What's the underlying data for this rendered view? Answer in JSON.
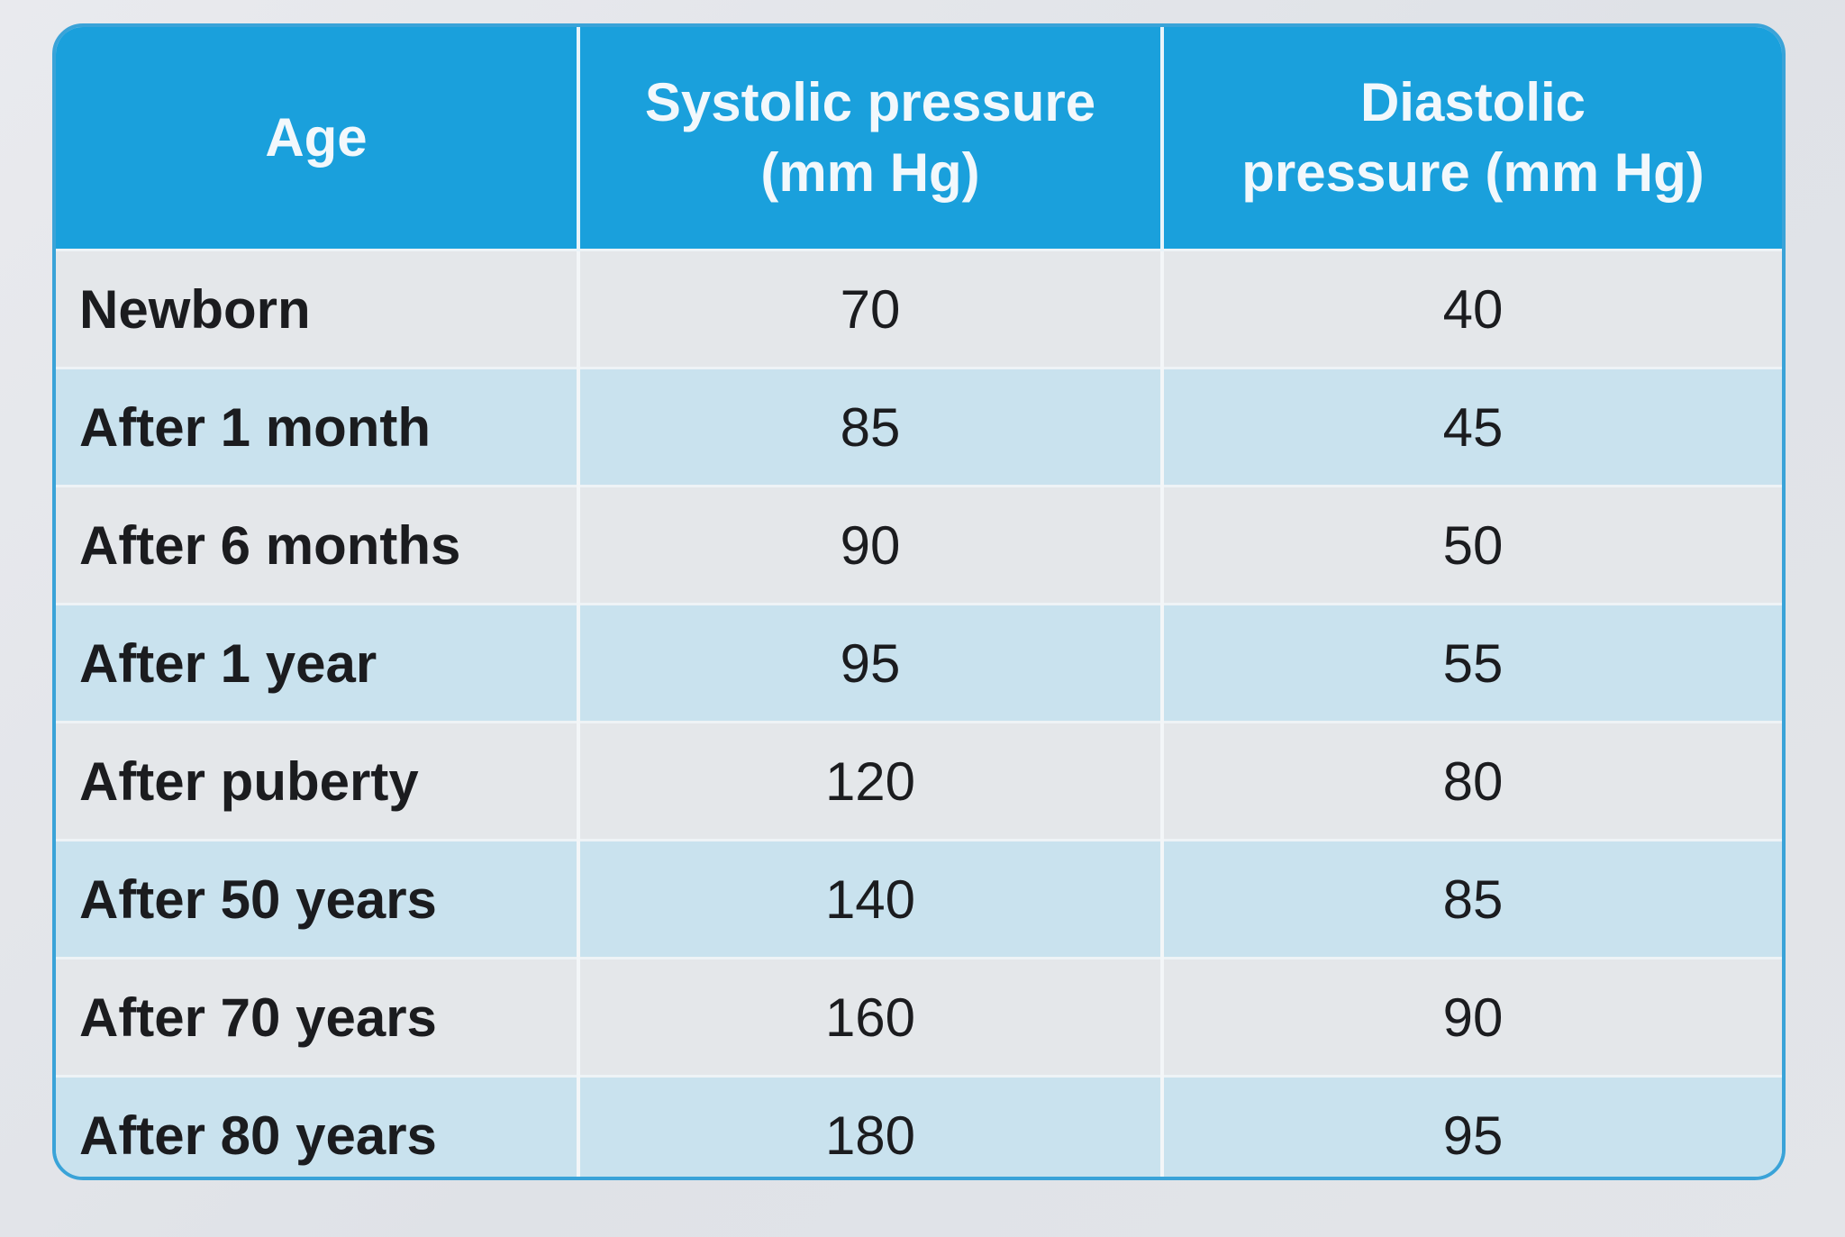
{
  "table": {
    "headers": {
      "age": "Age",
      "systolic_line1": "Systolic pressure",
      "systolic_line2": "(mm Hg)",
      "diastolic_line1": "Diastolic",
      "diastolic_line2": "pressure (mm Hg)"
    },
    "rows": [
      {
        "age": "Newborn",
        "systolic": "70",
        "diastolic": "40"
      },
      {
        "age": "After 1 month",
        "systolic": "85",
        "diastolic": "45"
      },
      {
        "age": "After 6 months",
        "systolic": "90",
        "diastolic": "50"
      },
      {
        "age": "After 1 year",
        "systolic": "95",
        "diastolic": "55"
      },
      {
        "age": "After puberty",
        "systolic": "120",
        "diastolic": "80"
      },
      {
        "age": "After 50 years",
        "systolic": "140",
        "diastolic": "85"
      },
      {
        "age": "After 70 years",
        "systolic": "160",
        "diastolic": "90"
      },
      {
        "age": "After 80 years",
        "systolic": "180",
        "diastolic": "95"
      }
    ]
  },
  "colors": {
    "header_bg": "#1aa0dc",
    "row_light": "#e4e7ea",
    "row_blue": "#c9e2ee"
  }
}
